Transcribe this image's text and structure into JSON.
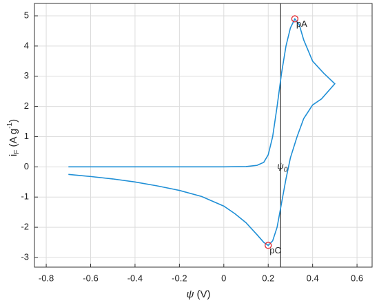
{
  "chart_data": {
    "type": "line",
    "xlabel": [
      "ψ",
      " (V)"
    ],
    "ylabel": [
      "i",
      "F",
      " (A g",
      "-1",
      ")"
    ],
    "xlim": [
      -0.853,
      0.668
    ],
    "xticks": [
      -0.8,
      -0.6,
      -0.4,
      -0.2,
      0,
      0.2,
      0.4,
      0.6
    ],
    "ylim": [
      -3.32,
      5.41
    ],
    "yticks": [
      -3,
      -2,
      -1,
      0,
      1,
      2,
      3,
      4,
      5
    ],
    "grid": true,
    "series": [
      {
        "color": "#1f8fd6",
        "x": [
          -0.7,
          0,
          0.1,
          0.15,
          0.18,
          0.2,
          0.22,
          0.24,
          0.26,
          0.28,
          0.3,
          0.32,
          0.34,
          0.36,
          0.4,
          0.45,
          0.5,
          0.47,
          0.44,
          0.4,
          0.36,
          0.33,
          0.3,
          0.28,
          0.26,
          0.24,
          0.22,
          0.2,
          0.18,
          0.15,
          0.1,
          0.05,
          0,
          -0.1,
          -0.2,
          -0.3,
          -0.4,
          -0.5,
          -0.6,
          -0.7
        ],
        "values": [
          0,
          0,
          0.01,
          0.05,
          0.15,
          0.4,
          1,
          2,
          3.1,
          4,
          4.6,
          4.9,
          4.7,
          4.2,
          3.5,
          3.1,
          2.75,
          2.5,
          2.25,
          2.05,
          1.6,
          1,
          0.3,
          -0.4,
          -1.2,
          -2,
          -2.45,
          -2.6,
          -2.5,
          -2.25,
          -1.85,
          -1.55,
          -1.3,
          -0.98,
          -0.78,
          -0.63,
          -0.5,
          -0.4,
          -0.32,
          -0.25
        ]
      }
    ],
    "peaks": [
      {
        "label": "pA",
        "x": 0.32,
        "y": 4.9,
        "color": "#e0242b"
      },
      {
        "label": "pC",
        "x": 0.2,
        "y": -2.6,
        "color": "#e0242b"
      }
    ],
    "vline": {
      "x": 0.256,
      "label": [
        "ψ",
        "0"
      ],
      "color": "#333333"
    }
  }
}
